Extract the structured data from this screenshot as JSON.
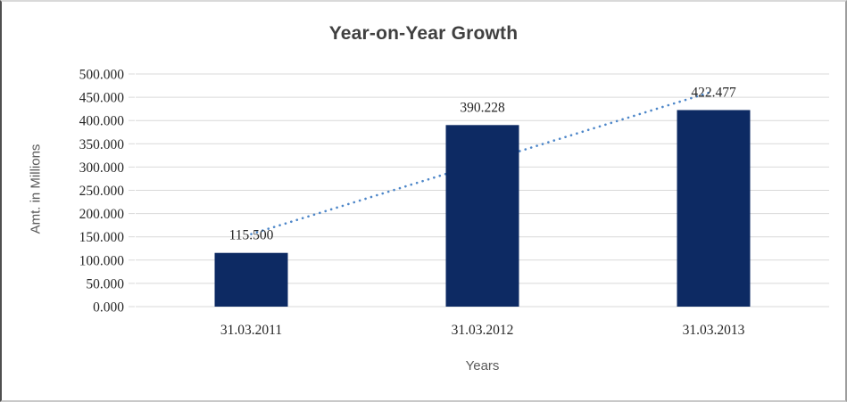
{
  "chart_data": {
    "type": "bar",
    "title": "Year-on-Year Growth",
    "categories": [
      "31.03.2011",
      "31.03.2012",
      "31.03.2013"
    ],
    "values": [
      115500,
      390228,
      422477
    ],
    "data_labels": [
      "115.500",
      "390.228",
      "422.477"
    ],
    "xlabel": "Years",
    "ylabel": "Amt. in Millions",
    "ylim": [
      0,
      500000
    ],
    "ytick_step": 50000,
    "ytick_labels": [
      "0.000",
      "50.000",
      "100.000",
      "150.000",
      "200.000",
      "250.000",
      "300.000",
      "350.000",
      "400.000",
      "450.000",
      "500.000"
    ],
    "grid": "horizontal",
    "legend": "none",
    "bar_color": "#0d2a63",
    "grid_color": "#d9d9d9",
    "label_color": "#262626",
    "axis_title_color": "#595959",
    "title_color": "#404040",
    "trendline": {
      "type": "linear",
      "style": "dotted",
      "color": "#4e87c9"
    }
  }
}
